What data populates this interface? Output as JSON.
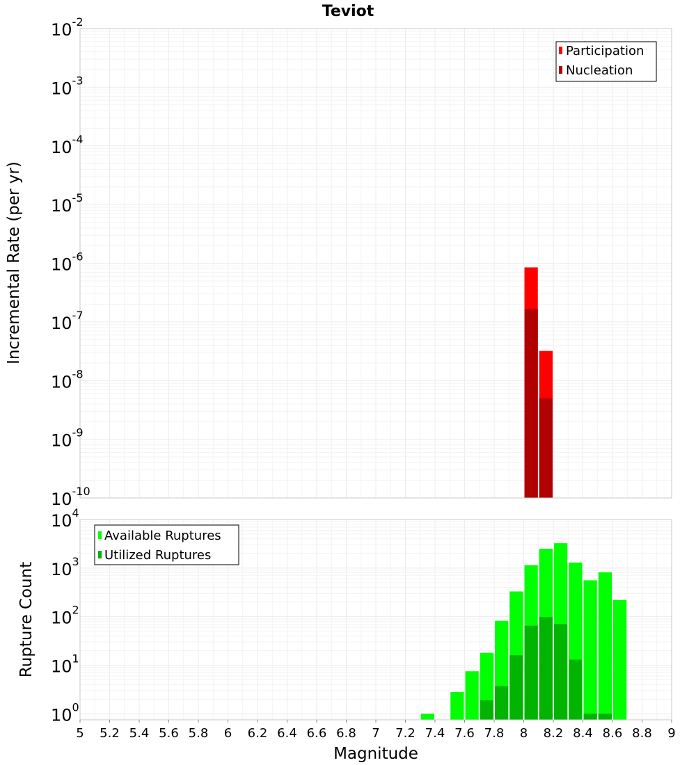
{
  "chart_data": [
    {
      "type": "bar",
      "title": "Teviot",
      "xlabel": "",
      "ylabel": "Incremental Rate (per yr)",
      "xlim": [
        5,
        9
      ],
      "ylim": [
        1e-10,
        0.01
      ],
      "yscale": "log",
      "grid": true,
      "bar_width": 0.1,
      "overlay": true,
      "legend_position": "top-right",
      "y_ticks": [
        {
          "base": "10",
          "exp": "-2",
          "value": 0.01
        },
        {
          "base": "10",
          "exp": "-3",
          "value": 0.001
        },
        {
          "base": "10",
          "exp": "-4",
          "value": 0.0001
        },
        {
          "base": "10",
          "exp": "-5",
          "value": 1e-05
        },
        {
          "base": "10",
          "exp": "-6",
          "value": 1e-06
        },
        {
          "base": "10",
          "exp": "-7",
          "value": 1e-07
        },
        {
          "base": "10",
          "exp": "-8",
          "value": 1e-08
        },
        {
          "base": "10",
          "exp": "-9",
          "value": 1e-09
        },
        {
          "base": "10",
          "exp": "-10",
          "value": 1e-10
        }
      ],
      "series": [
        {
          "name": "Participation",
          "color": "#ff0000",
          "x": [
            8.05,
            8.15
          ],
          "values": [
            8.5e-07,
            3.2e-08
          ]
        },
        {
          "name": "Nucleation",
          "color": "#b00000",
          "x": [
            8.05,
            8.15
          ],
          "values": [
            1.65e-07,
            5e-09
          ]
        }
      ]
    },
    {
      "type": "bar",
      "title": "",
      "xlabel": "Magnitude",
      "ylabel": "Rupture Count",
      "xlim": [
        5,
        9
      ],
      "ylim": [
        0.75,
        10000
      ],
      "yscale": "log",
      "grid": true,
      "bar_width": 0.1,
      "overlay": true,
      "legend_position": "top-left",
      "x_ticks": [
        "5",
        "5.2",
        "5.4",
        "5.6",
        "5.8",
        "6",
        "6.2",
        "6.4",
        "6.6",
        "6.8",
        "7",
        "7.2",
        "7.4",
        "7.6",
        "7.8",
        "8",
        "8.2",
        "8.4",
        "8.6",
        "8.8",
        "9"
      ],
      "y_ticks": [
        {
          "base": "10",
          "exp": "4",
          "value": 10000
        },
        {
          "base": "10",
          "exp": "3",
          "value": 1000
        },
        {
          "base": "10",
          "exp": "2",
          "value": 100
        },
        {
          "base": "10",
          "exp": "1",
          "value": 10
        },
        {
          "base": "10",
          "exp": "0",
          "value": 1
        }
      ],
      "series": [
        {
          "name": "Available Ruptures",
          "color": "#00ff00",
          "x": [
            7.35,
            7.55,
            7.65,
            7.75,
            7.85,
            7.95,
            8.05,
            8.15,
            8.25,
            8.35,
            8.45,
            8.55,
            8.65
          ],
          "values": [
            1,
            2.8,
            7.5,
            18,
            82,
            330,
            1150,
            2500,
            3250,
            1300,
            560,
            820,
            220
          ]
        },
        {
          "name": "Utilized Ruptures",
          "color": "#00b400",
          "x": [
            7.75,
            7.85,
            7.95,
            8.05,
            8.15,
            8.25,
            8.35,
            8.45,
            8.55
          ],
          "values": [
            1.9,
            3.7,
            16,
            65,
            98,
            70,
            13,
            1,
            1
          ]
        }
      ]
    }
  ]
}
